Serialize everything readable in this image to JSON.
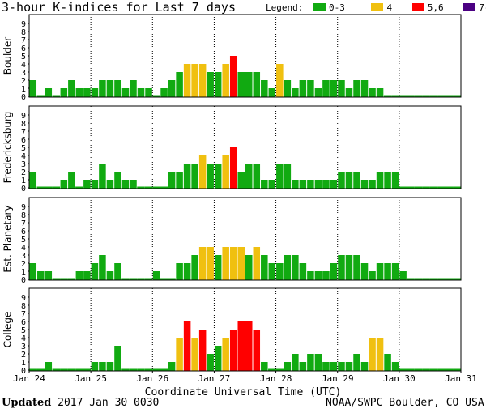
{
  "title": "3-hour K-indices for Last 7 days",
  "legend": {
    "label": "Legend:",
    "items": [
      {
        "label": "0-3",
        "color": "#11aa11"
      },
      {
        "label": "4",
        "color": "#f0c010"
      },
      {
        "label": "5,6",
        "color": "#ff0000"
      },
      {
        "label": "7-9",
        "color": "#4b0082"
      }
    ]
  },
  "footer": {
    "updated_label": "Updated",
    "updated_value": "2017 Jan 30 0030",
    "source": "NOAA/SWPC Boulder, CO USA"
  },
  "chart_data": {
    "type": "bar",
    "xlabel": "Coordinate Universal Time (UTC)",
    "x_tick_labels": [
      "Jan 24",
      "Jan 25",
      "Jan 26",
      "Jan 27",
      "Jan 28",
      "Jan 29",
      "Jan 30",
      "Jan 31"
    ],
    "ylim": [
      0,
      9
    ],
    "y_tick_labels": [
      "0",
      "1",
      "2",
      "3",
      "4",
      "5",
      "6",
      "7",
      "8",
      "9"
    ],
    "color_scale": {
      "0-3": "#11aa11",
      "4": "#f0c010",
      "5-6": "#ff0000",
      "7-9": "#4b0082"
    },
    "panels": [
      {
        "name": "Boulder",
        "values": [
          2,
          0,
          1,
          0,
          1,
          2,
          1,
          1,
          1,
          2,
          2,
          2,
          1,
          2,
          1,
          1,
          0,
          1,
          2,
          3,
          4,
          4,
          4,
          3,
          3,
          4,
          5,
          3,
          3,
          3,
          2,
          1,
          4,
          2,
          1,
          2,
          2,
          1,
          2,
          2,
          2,
          1,
          2,
          2,
          1,
          1,
          0,
          0,
          0,
          0,
          0,
          0,
          0,
          0,
          0,
          0
        ]
      },
      {
        "name": "Fredericksburg",
        "values": [
          2,
          0,
          0,
          0,
          1,
          2,
          0,
          1,
          1,
          3,
          1,
          2,
          1,
          1,
          0,
          0,
          0,
          0,
          2,
          2,
          3,
          3,
          4,
          3,
          3,
          4,
          5,
          2,
          3,
          3,
          1,
          1,
          3,
          3,
          1,
          1,
          1,
          1,
          1,
          1,
          2,
          2,
          2,
          1,
          1,
          2,
          2,
          2,
          0,
          0,
          0,
          0,
          0,
          0,
          0,
          0
        ]
      },
      {
        "name": "Est. Planetary",
        "values": [
          2,
          1,
          1,
          0,
          0,
          0,
          1,
          1,
          2,
          3,
          1,
          2,
          0,
          0,
          0,
          0,
          1,
          0,
          0,
          2,
          2,
          3,
          4,
          4,
          3,
          4,
          4,
          4,
          3,
          4,
          3,
          2,
          2,
          3,
          3,
          2,
          1,
          1,
          1,
          2,
          3,
          3,
          3,
          2,
          1,
          2,
          2,
          2,
          1,
          0,
          0,
          0,
          0,
          0,
          0,
          0
        ]
      },
      {
        "name": "College",
        "values": [
          0,
          0,
          1,
          0,
          0,
          0,
          0,
          0,
          1,
          1,
          1,
          3,
          0,
          0,
          0,
          0,
          0,
          0,
          1,
          4,
          6,
          4,
          5,
          2,
          3,
          4,
          5,
          6,
          6,
          5,
          1,
          0,
          0,
          1,
          2,
          1,
          2,
          2,
          1,
          1,
          1,
          1,
          2,
          1,
          4,
          4,
          2,
          1,
          0,
          0,
          0,
          0,
          0,
          0,
          0,
          0
        ]
      }
    ]
  }
}
